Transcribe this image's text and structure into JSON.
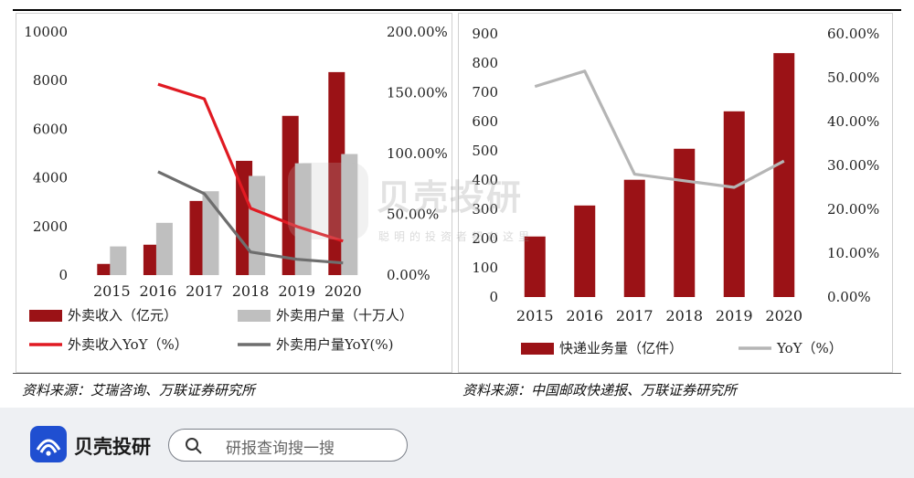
{
  "watermark": {
    "title": "贝壳投研",
    "subtitle": "聪明的投资者都在这里"
  },
  "left_chart": {
    "source": "资料来源：艾瑞咨询、万联证券研究所"
  },
  "right_chart": {
    "source": "资料来源：中国邮政快递报、万联证券研究所"
  },
  "footer": {
    "brand": "贝壳投研",
    "search_placeholder": "研报查询搜一搜"
  },
  "colors": {
    "dark_red": "#9b1216",
    "gray_bar": "#bfbfbf",
    "red_line": "#e01a22",
    "gray_line": "#6e6e6e",
    "light_gray_line": "#b5b5b5",
    "brand_blue": "#1f4fd1"
  },
  "chart_data": [
    {
      "type": "bar",
      "categories": [
        "2015",
        "2016",
        "2017",
        "2018",
        "2019",
        "2020"
      ],
      "y_left": {
        "min": 0,
        "max": 10000,
        "ticks": [
          "0",
          "2000",
          "4000",
          "6000",
          "8000",
          "10000"
        ]
      },
      "y_right": {
        "min": 0,
        "max": 200,
        "ticks": [
          "0.00%",
          "50.00%",
          "100.00%",
          "150.00%",
          "200.00%"
        ]
      },
      "series": [
        {
          "name": "外卖收入（亿元）",
          "kind": "bar",
          "axis": "left",
          "color": "#9b1216",
          "values": [
            460,
            1250,
            3050,
            4700,
            6550,
            8350
          ]
        },
        {
          "name": "外卖用户量（十万人）",
          "kind": "bar",
          "axis": "left",
          "color": "#bfbfbf",
          "values": [
            1180,
            2150,
            3450,
            4080,
            4600,
            4980
          ]
        },
        {
          "name": "外卖收入YoY（%）",
          "kind": "line",
          "axis": "right",
          "color": "#e01a22",
          "values": [
            null,
            157,
            145,
            55,
            40,
            28
          ]
        },
        {
          "name": "外卖用户量YoY(%)",
          "kind": "line",
          "axis": "right",
          "color": "#6e6e6e",
          "values": [
            null,
            85,
            67,
            19,
            13,
            10
          ]
        }
      ],
      "legend": [
        "外卖收入（亿元）",
        "外卖用户量（十万人）",
        "外卖收入YoY（%）",
        "外卖用户量YoY(%)"
      ],
      "legend_position": "bottom"
    },
    {
      "type": "bar",
      "categories": [
        "2015",
        "2016",
        "2017",
        "2018",
        "2019",
        "2020"
      ],
      "y_left": {
        "min": 0,
        "max": 900,
        "ticks": [
          "0",
          "100",
          "200",
          "300",
          "400",
          "500",
          "600",
          "700",
          "800",
          "900"
        ]
      },
      "y_right": {
        "min": 0,
        "max": 60,
        "ticks": [
          "0.00%",
          "10.00%",
          "20.00%",
          "30.00%",
          "40.00%",
          "50.00%",
          "60.00%"
        ]
      },
      "series": [
        {
          "name": "快递业务量（亿件）",
          "kind": "bar",
          "axis": "left",
          "color": "#9b1216",
          "values": [
            207,
            313,
            401,
            507,
            635,
            834
          ]
        },
        {
          "name": "YoY（%）",
          "kind": "line",
          "axis": "right",
          "color": "#b5b5b5",
          "values": [
            48,
            51.5,
            28,
            26.5,
            25,
            31
          ]
        }
      ],
      "legend": [
        "快递业务量（亿件）",
        "YoY（%）"
      ],
      "legend_position": "bottom"
    }
  ]
}
